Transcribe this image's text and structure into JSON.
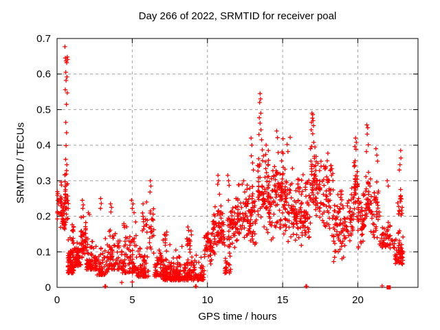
{
  "chart_data": {
    "type": "scatter",
    "title": "Day 266 of 2022, SRMTID for receiver poal",
    "xlabel": "GPS time / hours",
    "ylabel": "SRMTID / TECUs",
    "xlim": [
      0,
      24
    ],
    "ylim": [
      0,
      0.7
    ],
    "x_ticks": {
      "values": [
        0,
        5,
        10,
        15,
        20
      ],
      "labels": [
        "0",
        "5",
        "10",
        "15",
        "20"
      ]
    },
    "y_ticks": {
      "values": [
        0,
        0.1,
        0.2,
        0.3,
        0.4,
        0.5,
        0.6,
        0.7
      ],
      "labels": [
        "0",
        "0.1",
        "0.2",
        "0.3",
        "0.4",
        "0.5",
        "0.6",
        "0.7"
      ]
    },
    "grid": true,
    "legend": "none",
    "marker": "plus",
    "marker_color": "#ff0000",
    "grid_color": "#a0a0a0",
    "axis_color": "#000000",
    "background_color": "#ffffff",
    "seed": 2022266,
    "cluster_fields": [
      "hour_start",
      "hour_end",
      "value_min",
      "value_max",
      "count",
      "bottom_weighted"
    ],
    "clusters": [
      [
        0.02,
        0.3,
        0.15,
        0.31,
        26,
        0
      ],
      [
        0.3,
        0.55,
        0.14,
        0.26,
        30,
        0
      ],
      [
        0.5,
        0.75,
        0.15,
        0.35,
        28,
        0
      ],
      [
        0.72,
        1.15,
        0.04,
        0.16,
        75,
        1
      ],
      [
        1.0,
        1.12,
        0.14,
        0.19,
        6,
        0
      ],
      [
        1.15,
        1.6,
        0.06,
        0.18,
        55,
        1
      ],
      [
        1.6,
        1.95,
        0.07,
        0.2,
        45,
        0
      ],
      [
        1.95,
        2.3,
        0.05,
        0.17,
        40,
        1
      ],
      [
        2.3,
        2.65,
        0.05,
        0.15,
        35,
        1
      ],
      [
        2.65,
        3.35,
        0.035,
        0.14,
        55,
        1
      ],
      [
        3.35,
        4.3,
        0.05,
        0.19,
        75,
        1
      ],
      [
        4.3,
        5.3,
        0.04,
        0.2,
        80,
        1
      ],
      [
        5.3,
        6.1,
        0.03,
        0.13,
        65,
        1
      ],
      [
        5.6,
        6.0,
        0.13,
        0.22,
        12,
        0
      ],
      [
        6.1,
        6.45,
        0.08,
        0.26,
        22,
        0
      ],
      [
        6.45,
        7.05,
        0.03,
        0.13,
        50,
        1
      ],
      [
        7.0,
        7.3,
        0.1,
        0.17,
        10,
        0
      ],
      [
        7.05,
        9.3,
        0.02,
        0.095,
        215,
        1
      ],
      [
        8.6,
        8.95,
        0.09,
        0.165,
        14,
        0
      ],
      [
        9.3,
        9.8,
        0.02,
        0.09,
        35,
        1
      ],
      [
        9.8,
        10.35,
        0.06,
        0.17,
        45,
        0
      ],
      [
        10.35,
        11.15,
        0.08,
        0.24,
        65,
        0
      ],
      [
        11.15,
        11.55,
        0.04,
        0.12,
        25,
        1
      ],
      [
        11.3,
        12.05,
        0.1,
        0.26,
        60,
        0
      ],
      [
        12.05,
        13.25,
        0.1,
        0.3,
        95,
        0
      ],
      [
        13.3,
        13.75,
        0.15,
        0.4,
        40,
        0
      ],
      [
        13.75,
        14.45,
        0.13,
        0.38,
        65,
        0
      ],
      [
        14.45,
        15.05,
        0.15,
        0.4,
        60,
        0
      ],
      [
        15.05,
        16.05,
        0.1,
        0.35,
        85,
        0
      ],
      [
        16.05,
        16.85,
        0.1,
        0.33,
        70,
        0
      ],
      [
        16.85,
        17.15,
        0.2,
        0.43,
        32,
        0
      ],
      [
        17.15,
        18.35,
        0.13,
        0.4,
        95,
        0
      ],
      [
        18.35,
        19.25,
        0.06,
        0.28,
        75,
        0
      ],
      [
        19.25,
        19.7,
        0.12,
        0.3,
        32,
        0
      ],
      [
        19.7,
        20.0,
        0.15,
        0.38,
        32,
        0
      ],
      [
        20.0,
        20.5,
        0.1,
        0.28,
        48,
        0
      ],
      [
        20.5,
        20.85,
        0.15,
        0.35,
        30,
        0
      ],
      [
        20.85,
        21.45,
        0.12,
        0.3,
        42,
        0
      ],
      [
        21.45,
        22.15,
        0.11,
        0.24,
        42,
        1
      ],
      [
        22.15,
        22.45,
        0.1,
        0.16,
        8,
        0
      ],
      [
        22.45,
        23.05,
        0.065,
        0.17,
        52,
        1
      ],
      [
        22.6,
        22.95,
        0.17,
        0.315,
        16,
        0
      ]
    ],
    "outlier_points": [
      [
        0.52,
        0.677
      ],
      [
        0.68,
        0.648
      ],
      [
        0.55,
        0.645
      ],
      [
        0.7,
        0.641
      ],
      [
        0.6,
        0.637
      ],
      [
        0.64,
        0.632
      ],
      [
        0.58,
        0.605
      ],
      [
        0.66,
        0.592
      ],
      [
        0.6,
        0.582
      ],
      [
        0.55,
        0.556
      ],
      [
        0.68,
        0.547
      ],
      [
        0.62,
        0.515
      ],
      [
        0.58,
        0.464
      ],
      [
        0.63,
        0.435
      ],
      [
        0.6,
        0.399
      ],
      [
        0.57,
        0.36
      ],
      [
        0.65,
        0.345
      ],
      [
        1.68,
        0.245
      ],
      [
        1.74,
        0.232
      ],
      [
        1.71,
        0.222
      ],
      [
        2.08,
        0.21
      ],
      [
        2.15,
        0.205
      ],
      [
        2.9,
        0.25
      ],
      [
        2.94,
        0.236
      ],
      [
        2.89,
        0.222
      ],
      [
        3.55,
        0.235
      ],
      [
        3.62,
        0.225
      ],
      [
        3.58,
        0.212
      ],
      [
        4.95,
        0.245
      ],
      [
        5.05,
        0.235
      ],
      [
        5.0,
        0.222
      ],
      [
        5.12,
        0.21
      ],
      [
        5.72,
        0.235
      ],
      [
        5.95,
        0.24
      ],
      [
        6.2,
        0.3
      ],
      [
        6.24,
        0.285
      ],
      [
        6.18,
        0.268
      ],
      [
        7.5,
        0.12
      ],
      [
        7.9,
        0.105
      ],
      [
        8.3,
        0.115
      ],
      [
        8.7,
        0.17
      ],
      [
        8.75,
        0.16
      ],
      [
        10.7,
        0.315
      ],
      [
        10.74,
        0.3
      ],
      [
        10.68,
        0.29
      ],
      [
        10.8,
        0.262
      ],
      [
        11.35,
        0.315
      ],
      [
        11.4,
        0.3
      ],
      [
        11.44,
        0.287
      ],
      [
        11.9,
        0.25
      ],
      [
        12.4,
        0.3
      ],
      [
        12.9,
        0.42
      ],
      [
        12.95,
        0.4
      ],
      [
        12.92,
        0.37
      ],
      [
        13.0,
        0.35
      ],
      [
        13.05,
        0.33
      ],
      [
        13.5,
        0.545
      ],
      [
        13.53,
        0.53
      ],
      [
        13.47,
        0.52
      ],
      [
        13.55,
        0.49
      ],
      [
        13.45,
        0.477
      ],
      [
        13.5,
        0.462
      ],
      [
        13.56,
        0.443
      ],
      [
        13.42,
        0.43
      ],
      [
        13.6,
        0.415
      ],
      [
        13.9,
        0.4
      ],
      [
        14.05,
        0.385
      ],
      [
        14.6,
        0.44
      ],
      [
        14.66,
        0.421
      ],
      [
        15.02,
        0.418
      ],
      [
        15.3,
        0.402
      ],
      [
        15.35,
        0.382
      ],
      [
        15.5,
        0.422
      ],
      [
        16.95,
        0.49
      ],
      [
        17.0,
        0.486
      ],
      [
        16.98,
        0.476
      ],
      [
        17.03,
        0.469
      ],
      [
        16.92,
        0.464
      ],
      [
        17.05,
        0.455
      ],
      [
        16.9,
        0.443
      ],
      [
        17.0,
        0.432
      ],
      [
        19.85,
        0.42
      ],
      [
        19.9,
        0.408
      ],
      [
        19.8,
        0.396
      ],
      [
        19.88,
        0.388
      ],
      [
        20.6,
        0.457
      ],
      [
        20.66,
        0.449
      ],
      [
        20.62,
        0.431
      ],
      [
        20.7,
        0.401
      ],
      [
        20.57,
        0.382
      ],
      [
        21.2,
        0.39
      ],
      [
        21.26,
        0.372
      ],
      [
        21.31,
        0.355
      ],
      [
        21.95,
        0.3
      ],
      [
        22.02,
        0.285
      ],
      [
        22.85,
        0.385
      ],
      [
        22.86,
        0.364
      ],
      [
        22.8,
        0.345
      ],
      [
        22.76,
        0.33
      ]
    ],
    "near_axis_points": [
      [
        3.18,
        0.003
      ],
      [
        3.23,
        0.003
      ],
      [
        4.3,
        0.014
      ],
      [
        5.0,
        0.015
      ],
      [
        9.2,
        0.003
      ],
      [
        9.25,
        0.003
      ],
      [
        16.55,
        0.003
      ],
      [
        16.6,
        0.003
      ],
      [
        21.62,
        0.004
      ]
    ],
    "square_marker": {
      "x": 22.05,
      "y": 0.0,
      "size": 6
    }
  }
}
